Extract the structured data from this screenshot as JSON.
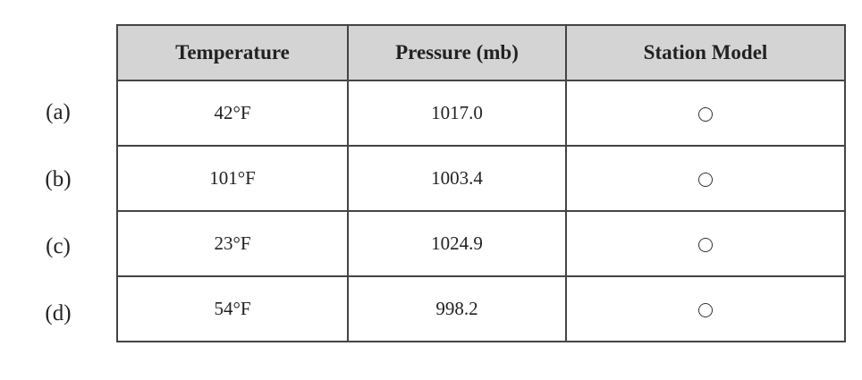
{
  "table": {
    "header": [
      "Temperature",
      "Pressure (mb)",
      "Station Model"
    ],
    "rows": [
      {
        "label": "(a)",
        "temperature": "42°F",
        "pressure": "1017.0"
      },
      {
        "label": "(b)",
        "temperature": "101°F",
        "pressure": "1003.4"
      },
      {
        "label": "(c)",
        "temperature": "23°F",
        "pressure": "1024.9"
      },
      {
        "label": "(d)",
        "temperature": "54°F",
        "pressure": "998.2"
      }
    ]
  }
}
